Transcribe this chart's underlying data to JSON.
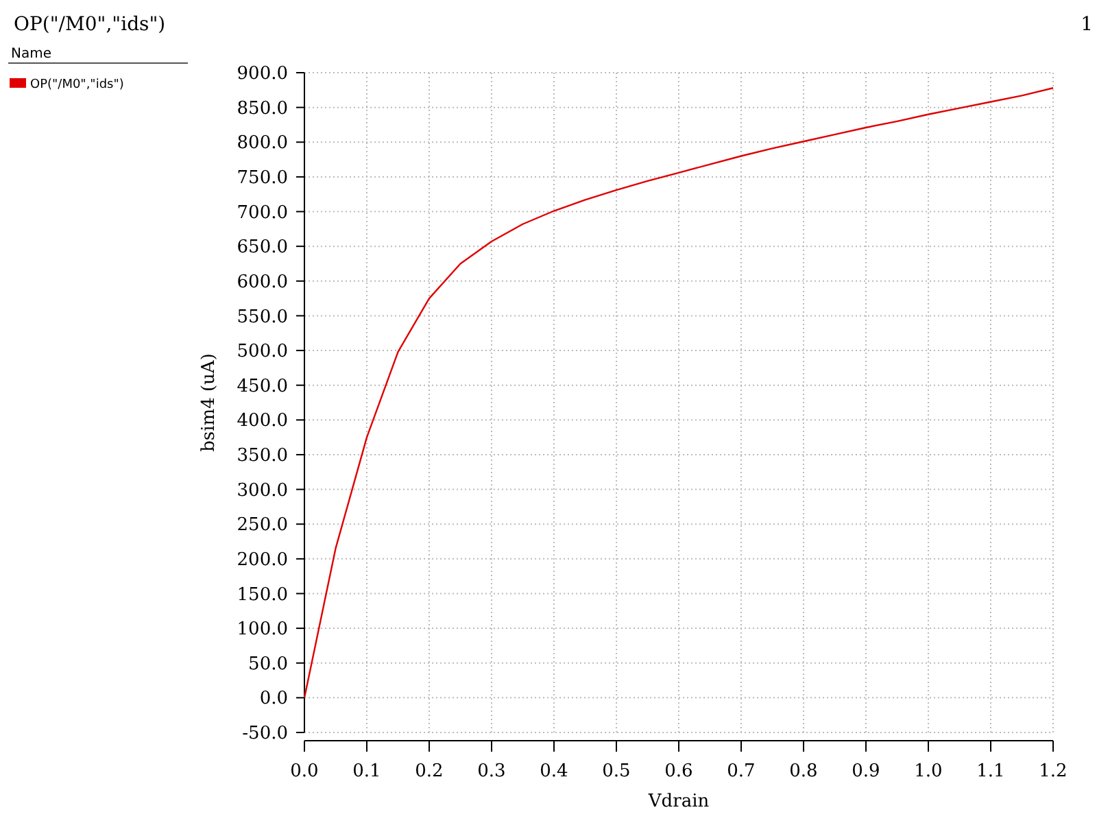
{
  "chart_data": {
    "type": "line",
    "title": "OP(\"/M0\",\"ids\")",
    "annotations": [
      "1"
    ],
    "xlabel": "Vdrain",
    "ylabel": "bsim4 (uA)",
    "legend_title": "Name",
    "legend": "left",
    "grid": true,
    "x": [
      0,
      0.05,
      0.1,
      0.15,
      0.2,
      0.25,
      0.3,
      0.35,
      0.4,
      0.45,
      0.5,
      0.55,
      0.6,
      0.65,
      0.7,
      0.75,
      0.8,
      0.85,
      0.9,
      0.95,
      1.0,
      1.05,
      1.1,
      1.15,
      1.2
    ],
    "series": [
      {
        "name": "OP(\"/M0\",\"ids\")",
        "color": "#e00000",
        "values": [
          0,
          215,
          375,
          498,
          575,
          625,
          657,
          682,
          701,
          717,
          731,
          744,
          756,
          768,
          780,
          791,
          801,
          811,
          821,
          830,
          840,
          849,
          858,
          867,
          878
        ]
      }
    ],
    "xlim": [
      0,
      1.2
    ],
    "ylim": [
      -50,
      900
    ],
    "xticks": [
      {
        "value": 0,
        "label": "0.0"
      },
      {
        "value": 0.1,
        "label": "0.1"
      },
      {
        "value": 0.2,
        "label": "0.2"
      },
      {
        "value": 0.3,
        "label": "0.3"
      },
      {
        "value": 0.4,
        "label": "0.4"
      },
      {
        "value": 0.5,
        "label": "0.5"
      },
      {
        "value": 0.6,
        "label": "0.6"
      },
      {
        "value": 0.7,
        "label": "0.7"
      },
      {
        "value": 0.8,
        "label": "0.8"
      },
      {
        "value": 0.9,
        "label": "0.9"
      },
      {
        "value": 1.0,
        "label": "1.0"
      },
      {
        "value": 1.1,
        "label": "1.1"
      },
      {
        "value": 1.2,
        "label": "1.2"
      }
    ],
    "yticks": [
      {
        "value": -50,
        "label": "-50.0"
      },
      {
        "value": 0,
        "label": "0.0"
      },
      {
        "value": 50,
        "label": "50.0"
      },
      {
        "value": 100,
        "label": "100.0"
      },
      {
        "value": 150,
        "label": "150.0"
      },
      {
        "value": 200,
        "label": "200.0"
      },
      {
        "value": 250,
        "label": "250.0"
      },
      {
        "value": 300,
        "label": "300.0"
      },
      {
        "value": 350,
        "label": "350.0"
      },
      {
        "value": 400,
        "label": "400.0"
      },
      {
        "value": 450,
        "label": "450.0"
      },
      {
        "value": 500,
        "label": "500.0"
      },
      {
        "value": 550,
        "label": "550.0"
      },
      {
        "value": 600,
        "label": "600.0"
      },
      {
        "value": 650,
        "label": "650.0"
      },
      {
        "value": 700,
        "label": "700.0"
      },
      {
        "value": 750,
        "label": "750.0"
      },
      {
        "value": 800,
        "label": "800.0"
      },
      {
        "value": 850,
        "label": "850.0"
      },
      {
        "value": 900,
        "label": "900.0"
      }
    ]
  }
}
